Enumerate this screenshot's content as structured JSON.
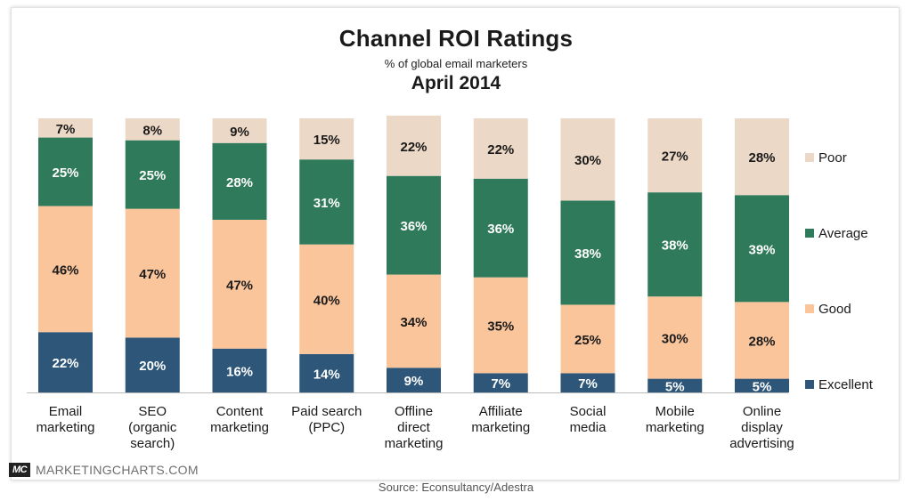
{
  "title": "Channel ROI Ratings",
  "subtitle": "% of global email marketers",
  "date": "April 2014",
  "brand": {
    "logo": "MC",
    "name": "MARKETINGCHARTS.COM"
  },
  "source": "Source:  Econsultancy/Adestra",
  "chart_data": {
    "type": "bar",
    "stacked": true,
    "percent": true,
    "title": "Channel ROI Ratings",
    "subtitle": "% of global email marketers",
    "xlabel": "",
    "ylabel": "",
    "ylim": [
      0,
      100
    ],
    "grid": false,
    "legend_position": "right",
    "categories": [
      [
        "Email",
        "marketing"
      ],
      [
        "SEO",
        "(organic",
        "search)"
      ],
      [
        "Content",
        "marketing"
      ],
      [
        "Paid search",
        "(PPC)"
      ],
      [
        "Offline",
        "direct",
        "marketing"
      ],
      [
        "Affiliate",
        "marketing"
      ],
      [
        "Social",
        "media"
      ],
      [
        "Mobile",
        "marketing"
      ],
      [
        "Online",
        "display",
        "advertising"
      ]
    ],
    "series": [
      {
        "name": "Excellent",
        "color": "#2d5679",
        "values": [
          22,
          20,
          16,
          14,
          9,
          7,
          7,
          5,
          5
        ]
      },
      {
        "name": "Good",
        "color": "#fbc59c",
        "values": [
          46,
          47,
          47,
          40,
          34,
          35,
          25,
          30,
          28
        ]
      },
      {
        "name": "Average",
        "color": "#2f7a5a",
        "values": [
          25,
          25,
          28,
          31,
          36,
          36,
          38,
          38,
          39
        ]
      },
      {
        "name": "Poor",
        "color": "#ecd8c6",
        "values": [
          7,
          8,
          9,
          15,
          22,
          22,
          30,
          27,
          28
        ]
      }
    ],
    "legend_order": [
      "Poor",
      "Average",
      "Good",
      "Excellent"
    ]
  }
}
